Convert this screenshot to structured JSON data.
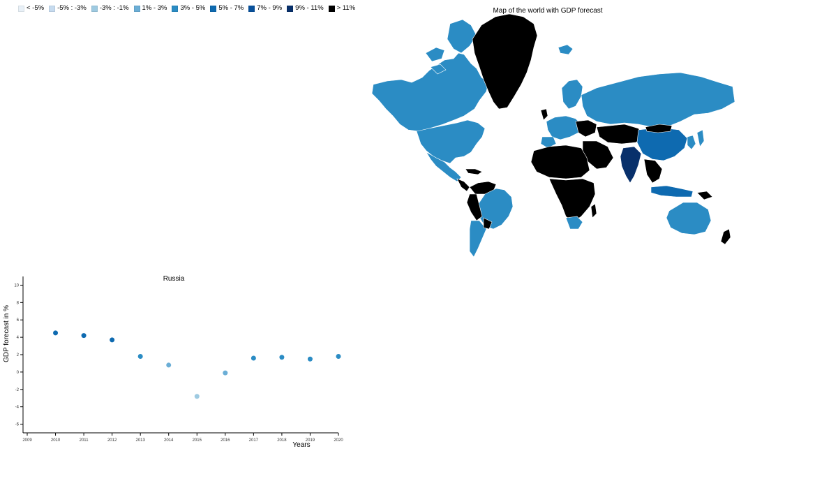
{
  "legend": {
    "items": [
      {
        "label": "< -5%",
        "color": "#e8f0f7"
      },
      {
        "label": "-5% : -3%",
        "color": "#c6dbef"
      },
      {
        "label": "-3% : -1%",
        "color": "#9ecae1"
      },
      {
        "label": "1% - 3%",
        "color": "#6baed6"
      },
      {
        "label": "3% - 5%",
        "color": "#2b8cc4"
      },
      {
        "label": "5% - 7%",
        "color": "#0e6ab0"
      },
      {
        "label": "7% - 9%",
        "color": "#08519c"
      },
      {
        "label": "9% - 11%",
        "color": "#08306b"
      },
      {
        "label": "> 11%",
        "color": "#000000"
      }
    ]
  },
  "map": {
    "title": "Map of the world with GDP forecast",
    "colors": {
      "default_country": "#2b8cc4",
      "darkest": "#000000",
      "dark_navy": "#08306b",
      "mid_blue": "#0e6ab0",
      "light_blue": "#6baed6",
      "land_border": "#ffffff"
    }
  },
  "chart_data": {
    "type": "scatter",
    "title": "Russia",
    "xlabel": "Years",
    "ylabel": "GDP forecast in %",
    "xlim": [
      2009,
      2020
    ],
    "ylim": [
      -7,
      11
    ],
    "x_ticks": [
      "2009",
      "2010",
      "2011",
      "2012",
      "2013",
      "2014",
      "2015",
      "2016",
      "2017",
      "2018",
      "2019",
      "2020"
    ],
    "y_ticks": [
      "-6",
      "-4",
      "-2",
      "0",
      "2",
      "4",
      "6",
      "8",
      "10"
    ],
    "points": [
      {
        "x": 2010,
        "y": 4.5,
        "color": "#0e6ab0"
      },
      {
        "x": 2011,
        "y": 4.2,
        "color": "#0e6ab0"
      },
      {
        "x": 2012,
        "y": 3.7,
        "color": "#0e6ab0"
      },
      {
        "x": 2013,
        "y": 1.8,
        "color": "#2b8cc4"
      },
      {
        "x": 2014,
        "y": 0.8,
        "color": "#6baed6"
      },
      {
        "x": 2015,
        "y": -2.8,
        "color": "#9ecae1"
      },
      {
        "x": 2016,
        "y": -0.1,
        "color": "#6baed6"
      },
      {
        "x": 2017,
        "y": 1.6,
        "color": "#2b8cc4"
      },
      {
        "x": 2018,
        "y": 1.7,
        "color": "#2b8cc4"
      },
      {
        "x": 2019,
        "y": 1.5,
        "color": "#2b8cc4"
      },
      {
        "x": 2020,
        "y": 1.8,
        "color": "#2b8cc4"
      }
    ],
    "grid": false
  }
}
